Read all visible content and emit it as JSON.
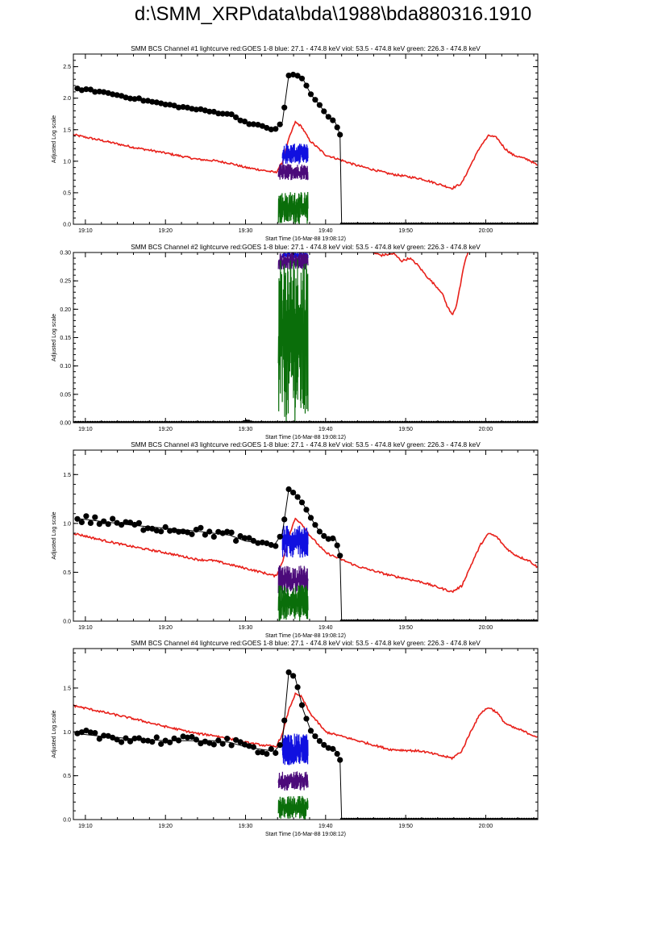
{
  "page_title": "d:\\SMM_XRP\\data\\bda\\1988\\bda880316.1910",
  "colors": {
    "goes": "#e8201a",
    "blue": "#1010e0",
    "viol": "#4b0a7a",
    "green": "#0a6e0a",
    "bcs": "#000000",
    "frame": "#000000"
  },
  "chart_data": [
    {
      "type": "line",
      "title": "SMM BCS Channel #1 lightcurve  red:GOES 1-8  blue: 27.1 - 474.8 keV  viol: 53.5 - 474.8 keV  green: 226.3 - 474.8 keV",
      "xlabel": "Start Time (16-Mar-88 19:08:12)",
      "ylabel": "Adjusted Log scale",
      "x_unit": "minutes after 19:00 UT",
      "xlim": [
        8.5,
        66.5
      ],
      "ylim": [
        0,
        2.7
      ],
      "xticks": [
        10,
        20,
        30,
        40,
        50,
        60
      ],
      "xtick_labels": [
        "19:10",
        "19:20",
        "19:30",
        "19:40",
        "19:50",
        "20:00"
      ],
      "yticks": [
        0.0,
        0.5,
        1.0,
        1.5,
        2.0,
        2.5
      ],
      "ytick_labels": [
        "0.0",
        "0.5",
        "1.0",
        "1.5",
        "2.0",
        "2.5"
      ],
      "grid": false,
      "series": [
        {
          "key": "goes",
          "x": [
            8.5,
            12,
            16,
            20,
            24,
            26,
            28,
            30,
            32,
            33.8,
            34.6,
            35.4,
            36.2,
            37,
            38,
            40,
            44,
            48,
            52,
            55.8,
            57,
            58.2,
            59.4,
            60.4,
            61.4,
            62.4,
            63.4,
            64.4,
            65.4,
            66.5
          ],
          "y": [
            1.42,
            1.33,
            1.22,
            1.13,
            1.03,
            1.01,
            0.97,
            0.9,
            0.86,
            0.82,
            0.98,
            1.35,
            1.62,
            1.55,
            1.33,
            1.1,
            0.93,
            0.8,
            0.72,
            0.57,
            0.65,
            0.96,
            1.25,
            1.41,
            1.37,
            1.2,
            1.1,
            1.06,
            1.02,
            0.93
          ]
        },
        {
          "key": "blue",
          "band": [
            34.6,
            37.8
          ],
          "range": [
            0.95,
            1.28
          ]
        },
        {
          "key": "viol",
          "band": [
            34.1,
            37.8
          ],
          "range": [
            0.7,
            0.96
          ]
        },
        {
          "key": "green",
          "band": [
            34.1,
            37.8
          ],
          "range": [
            0.0,
            0.52
          ]
        },
        {
          "key": "bcs",
          "x": [
            9,
            12,
            16,
            20,
            24,
            26,
            28,
            30,
            32,
            33.6,
            34.6,
            35.4,
            36.2,
            37.2,
            38.2,
            39.2,
            40.2,
            41.2,
            41.8,
            42.0,
            66.5
          ],
          "y": [
            2.15,
            2.1,
            2.0,
            1.9,
            1.82,
            1.78,
            1.75,
            1.62,
            1.55,
            1.5,
            1.62,
            2.36,
            2.38,
            2.3,
            2.05,
            1.9,
            1.72,
            1.62,
            1.42,
            0.0,
            0.0
          ]
        }
      ]
    },
    {
      "type": "line",
      "title": "SMM BCS Channel #2 lightcurve  red:GOES 1-8  blue: 27.1 - 474.8 keV  viol: 53.5 - 474.8 keV  green: 226.3 - 474.8 keV",
      "xlabel": "Start Time (16-Mar-88 19:08:12)",
      "ylabel": "Adjusted Log scale",
      "x_unit": "minutes after 19:00 UT",
      "xlim": [
        8.5,
        66.5
      ],
      "ylim": [
        0,
        0.3
      ],
      "xticks": [
        10,
        20,
        30,
        40,
        50,
        60
      ],
      "xtick_labels": [
        "19:10",
        "19:20",
        "19:30",
        "19:40",
        "19:50",
        "20:00"
      ],
      "yticks": [
        0.0,
        0.05,
        0.1,
        0.15,
        0.2,
        0.25,
        0.3
      ],
      "ytick_labels": [
        "0.00",
        "0.05",
        "0.10",
        "0.15",
        "0.20",
        "0.25",
        "0.30"
      ],
      "grid": false,
      "series": [
        {
          "key": "goes",
          "x": [
            45.8,
            47,
            48.5,
            49.5,
            50.5,
            51.5,
            52.5,
            53.5,
            54.5,
            55.2,
            55.8,
            56.3,
            56.8,
            57.4,
            57.8
          ],
          "y": [
            0.3,
            0.295,
            0.298,
            0.285,
            0.29,
            0.278,
            0.26,
            0.245,
            0.23,
            0.205,
            0.19,
            0.205,
            0.24,
            0.285,
            0.3
          ]
        },
        {
          "key": "blue",
          "band": [
            34.6,
            37.8
          ],
          "range": [
            0.29,
            0.3
          ]
        },
        {
          "key": "viol",
          "band": [
            34.1,
            37.8
          ],
          "range": [
            0.27,
            0.3
          ]
        },
        {
          "key": "green",
          "band": [
            34.1,
            37.8
          ],
          "range": [
            0.0,
            0.3
          ]
        },
        {
          "key": "bcs",
          "x": [
            8.5,
            29.5,
            30.2,
            30.9,
            66.5
          ],
          "y": [
            0.0,
            0.0,
            0.003,
            0.0,
            0.0
          ]
        }
      ]
    },
    {
      "type": "line",
      "title": "SMM BCS Channel #3 lightcurve  red:GOES 1-8  blue: 27.1 - 474.8 keV  viol: 53.5 - 474.8 keV  green: 226.3 - 474.8 keV",
      "xlabel": "Start Time (16-Mar-88 19:08:12)",
      "ylabel": "Adjusted Log scale",
      "x_unit": "minutes after 19:00 UT",
      "xlim": [
        8.5,
        66.5
      ],
      "ylim": [
        0,
        1.75
      ],
      "xticks": [
        10,
        20,
        30,
        40,
        50,
        60
      ],
      "xtick_labels": [
        "19:10",
        "19:20",
        "19:30",
        "19:40",
        "19:50",
        "20:00"
      ],
      "yticks": [
        0.0,
        0.5,
        1.0,
        1.5
      ],
      "ytick_labels": [
        "0.0",
        "0.5",
        "1.0",
        "1.5"
      ],
      "grid": false,
      "series": [
        {
          "key": "goes",
          "x": [
            8.5,
            12,
            16,
            20,
            24,
            26,
            28,
            30,
            32,
            33.8,
            34.6,
            35.4,
            36.2,
            37,
            38,
            40,
            44,
            48,
            52,
            55.8,
            57,
            58.2,
            59.4,
            60.4,
            61.4,
            62.4,
            63.4,
            64.4,
            65.4,
            66.5
          ],
          "y": [
            0.9,
            0.83,
            0.76,
            0.7,
            0.63,
            0.62,
            0.58,
            0.54,
            0.5,
            0.46,
            0.6,
            0.86,
            1.05,
            1.0,
            0.88,
            0.7,
            0.56,
            0.47,
            0.4,
            0.3,
            0.36,
            0.58,
            0.79,
            0.9,
            0.86,
            0.76,
            0.69,
            0.65,
            0.62,
            0.55
          ]
        },
        {
          "key": "blue",
          "band": [
            34.6,
            37.8
          ],
          "range": [
            0.65,
            0.98
          ]
        },
        {
          "key": "viol",
          "band": [
            34.1,
            37.8
          ],
          "range": [
            0.27,
            0.57
          ]
        },
        {
          "key": "green",
          "band": [
            34.1,
            37.8
          ],
          "range": [
            0.0,
            0.37
          ]
        },
        {
          "key": "bcs",
          "x": [
            9,
            12,
            16,
            20,
            24,
            26,
            28,
            30,
            32,
            33.6,
            34.6,
            35.4,
            36.2,
            37.2,
            38.2,
            39.2,
            40.2,
            41.2,
            41.8,
            42.0,
            66.5
          ],
          "y": [
            1.05,
            1.02,
            0.98,
            0.95,
            0.92,
            0.9,
            0.88,
            0.82,
            0.8,
            0.78,
            0.9,
            1.35,
            1.3,
            1.2,
            1.05,
            0.92,
            0.84,
            0.85,
            0.67,
            0.0,
            0.0
          ]
        }
      ]
    },
    {
      "type": "line",
      "title": "SMM BCS Channel #4 lightcurve  red:GOES 1-8  blue: 27.1 - 474.8 keV  viol: 53.5 - 474.8 keV  green: 226.3 - 474.8 keV",
      "xlabel": "Start Time (16-Mar-88 19:08:12)",
      "ylabel": "Adjusted Log scale",
      "x_unit": "minutes after 19:00 UT",
      "xlim": [
        8.5,
        66.5
      ],
      "ylim": [
        0,
        1.95
      ],
      "xticks": [
        10,
        20,
        30,
        40,
        50,
        60
      ],
      "xtick_labels": [
        "19:10",
        "19:20",
        "19:30",
        "19:40",
        "19:50",
        "20:00"
      ],
      "yticks": [
        0.0,
        0.5,
        1.0,
        1.5
      ],
      "ytick_labels": [
        "0.0",
        "0.5",
        "1.0",
        "1.5"
      ],
      "grid": false,
      "series": [
        {
          "key": "goes",
          "x": [
            8.5,
            12,
            16,
            20,
            24,
            26,
            28,
            30,
            32,
            33.8,
            34.6,
            35.4,
            36.2,
            37,
            38,
            40,
            44,
            48,
            52,
            55.8,
            57,
            58.2,
            59.4,
            60.4,
            61.4,
            62.4,
            63.4,
            64.4,
            65.4,
            66.5
          ],
          "y": [
            1.3,
            1.23,
            1.15,
            1.06,
            0.98,
            0.96,
            0.92,
            0.88,
            0.85,
            0.83,
            0.97,
            1.25,
            1.43,
            1.4,
            1.22,
            1.0,
            0.9,
            0.8,
            0.78,
            0.7,
            0.78,
            1.02,
            1.22,
            1.28,
            1.22,
            1.1,
            1.05,
            1.02,
            0.98,
            0.94
          ]
        },
        {
          "key": "blue",
          "band": [
            34.6,
            37.8
          ],
          "range": [
            0.62,
            0.98
          ]
        },
        {
          "key": "viol",
          "band": [
            34.1,
            37.8
          ],
          "range": [
            0.33,
            0.55
          ]
        },
        {
          "key": "green",
          "band": [
            34.1,
            37.8
          ],
          "range": [
            0.0,
            0.27
          ]
        },
        {
          "key": "bcs",
          "x": [
            9,
            12,
            16,
            20,
            24,
            26,
            28,
            30,
            32,
            33.6,
            34.6,
            35.4,
            36.2,
            37.2,
            38.2,
            39.2,
            40.2,
            41.2,
            41.8,
            42.0,
            66.5
          ],
          "y": [
            0.98,
            0.95,
            0.92,
            0.9,
            0.9,
            0.9,
            0.88,
            0.83,
            0.8,
            0.78,
            0.88,
            1.68,
            1.62,
            1.25,
            1.0,
            0.9,
            0.82,
            0.8,
            0.68,
            0.0,
            0.0
          ]
        }
      ]
    }
  ]
}
